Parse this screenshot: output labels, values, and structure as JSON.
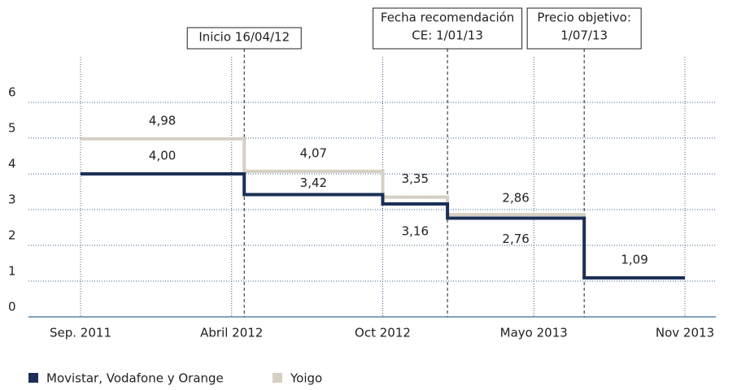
{
  "chart_data": {
    "type": "step",
    "x": [
      "2011-09",
      "2012-04-16",
      "2012-10",
      "2013-01",
      "2013-07-01"
    ],
    "xlim": [
      "2011-09",
      "2013-11"
    ],
    "xticks": [
      {
        "value": "2011-09",
        "label": "Sep. 2011"
      },
      {
        "value": "2012-04",
        "label": "Abril 2012"
      },
      {
        "value": "2012-10",
        "label": "Oct 2012"
      },
      {
        "value": "2013-05",
        "label": "Mayo 2013"
      },
      {
        "value": "2013-11",
        "label": "Nov 2013"
      }
    ],
    "ylim": [
      0,
      6
    ],
    "yticks": [
      0,
      1,
      2,
      3,
      4,
      5,
      6
    ],
    "grid": true,
    "series": [
      {
        "name": "Yoigo",
        "color": "#d6d0c4",
        "values": [
          4.98,
          4.07,
          3.35,
          2.86,
          1.09
        ],
        "value_labels": [
          "4,98",
          "4,07",
          "3,35",
          "2,86",
          null
        ]
      },
      {
        "name": "Movistar, Vodafone y Orange",
        "color": "#1b2f57",
        "values": [
          4.0,
          3.42,
          3.16,
          2.76,
          1.09
        ],
        "value_labels": [
          "4,00",
          "3,42",
          "3,16",
          "2,76",
          "1,09"
        ]
      }
    ],
    "annotations": [
      {
        "x": "2012-04-16",
        "lines": [
          "Inicio 16/04/12"
        ]
      },
      {
        "x": "2013-01-01",
        "lines": [
          "Fecha recomendación",
          "CE: 1/01/13"
        ]
      },
      {
        "x": "2013-07-01",
        "lines": [
          "Precio objetivo:",
          "1/07/13"
        ]
      }
    ],
    "legend": "bottom-left"
  }
}
